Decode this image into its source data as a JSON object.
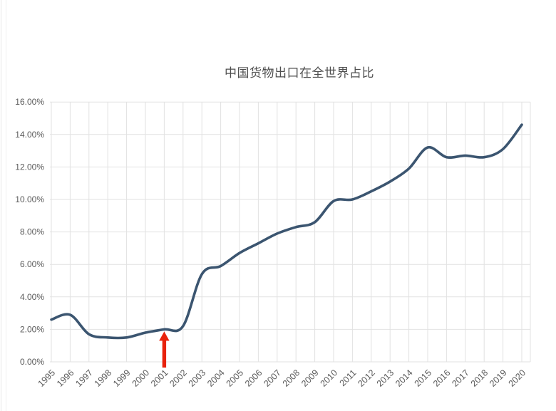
{
  "page": {
    "background": "#ffffff"
  },
  "chart_data": {
    "type": "line",
    "title": "中国货物出口在全世界占比",
    "x": [
      "1995",
      "1996",
      "1997",
      "1998",
      "1999",
      "2000",
      "2001",
      "2002",
      "2003",
      "2004",
      "2005",
      "2006",
      "2007",
      "2008",
      "2009",
      "2010",
      "2011",
      "2012",
      "2013",
      "2014",
      "2015",
      "2016",
      "2017",
      "2018",
      "2019",
      "2020"
    ],
    "series": [
      {
        "name": "中国货物出口在全世界占比",
        "values": [
          2.6,
          2.9,
          1.7,
          1.5,
          1.5,
          1.8,
          2.0,
          2.2,
          5.4,
          5.9,
          6.7,
          7.3,
          7.9,
          8.3,
          8.6,
          9.9,
          10.0,
          10.5,
          11.1,
          11.9,
          13.2,
          12.6,
          12.7,
          12.6,
          13.1,
          14.6
        ]
      }
    ],
    "xlabel": "",
    "ylabel": "",
    "ylim": [
      0,
      16
    ],
    "y_ticks": [
      "0.00%",
      "2.00%",
      "4.00%",
      "6.00%",
      "8.00%",
      "10.00%",
      "12.00%",
      "14.00%",
      "16.00%"
    ],
    "grid": true,
    "legend": false,
    "smoothed_line": true,
    "x_label_rotation_deg": -45,
    "colors": {
      "line": "#3b5570",
      "grid": "#e2e2e2",
      "tick_label": "#595959",
      "title": "#4f4f4f",
      "arrow": "#e8220b"
    },
    "annotation": {
      "shape": "up-arrow",
      "points_at_year": "2001",
      "points_at_value": 2.0,
      "color": "#e8220b"
    }
  }
}
